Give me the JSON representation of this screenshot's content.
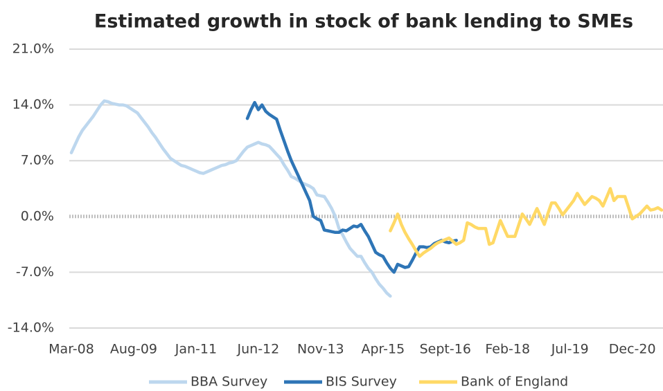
{
  "chart_data": {
    "type": "line",
    "title": "Estimated growth in stock of bank lending to SMEs",
    "categories": [
      "Mar-08",
      null,
      null,
      null,
      null,
      null,
      null,
      null,
      null,
      null,
      null,
      null,
      null,
      null,
      null,
      null,
      null,
      "Aug-09",
      null,
      null,
      null,
      null,
      null,
      null,
      null,
      null,
      null,
      null,
      null,
      null,
      null,
      null,
      null,
      null,
      "Jan-11",
      null,
      null,
      null,
      null,
      null,
      null,
      null,
      null,
      null,
      null,
      null,
      null,
      null,
      null,
      null,
      null,
      "Jun-12",
      null,
      null,
      null,
      null,
      null,
      null,
      null,
      null,
      null,
      null,
      null,
      null,
      null,
      null,
      null,
      null,
      "Nov-13",
      null,
      null,
      null,
      null,
      null,
      null,
      null,
      null,
      null,
      null,
      null,
      null,
      null,
      null,
      null,
      null,
      "Apr-15",
      null,
      null,
      null,
      null,
      null,
      null,
      null,
      null,
      null,
      null,
      null,
      null,
      null,
      null,
      null,
      null,
      "Sept-16",
      null,
      null,
      null,
      null,
      null,
      null,
      null,
      null,
      null,
      null,
      null,
      null,
      null,
      null,
      null,
      null,
      "Feb-18",
      null,
      null,
      null,
      null,
      null,
      null,
      null,
      null,
      null,
      null,
      null,
      null,
      null,
      null,
      null,
      null,
      "Jul-19",
      null,
      null,
      null,
      null,
      null,
      null,
      null,
      null,
      null,
      null,
      null,
      null,
      null,
      null,
      null,
      null,
      "Dec-20",
      null,
      null,
      null,
      null,
      null,
      null,
      null,
      null
    ],
    "series": [
      {
        "name": "BBA Survey",
        "color": "#bdd7ee",
        "values": [
          8.0,
          9.0,
          10.0,
          10.8,
          11.4,
          12.0,
          12.6,
          13.3,
          14.0,
          14.5,
          14.4,
          14.2,
          14.1,
          14.0,
          14.0,
          13.9,
          13.6,
          13.3,
          13.0,
          12.4,
          11.8,
          11.2,
          10.5,
          9.9,
          9.2,
          8.5,
          7.9,
          7.3,
          7.0,
          6.7,
          6.4,
          6.3,
          6.1,
          5.9,
          5.7,
          5.5,
          5.4,
          5.6,
          5.8,
          6.0,
          6.2,
          6.4,
          6.5,
          6.7,
          6.8,
          7.0,
          7.6,
          8.2,
          8.7,
          8.9,
          9.1,
          9.3,
          9.1,
          9.0,
          8.8,
          8.3,
          7.8,
          7.3,
          6.5,
          5.8,
          5.0,
          4.8,
          4.5,
          4.2,
          4.0,
          3.8,
          3.5,
          2.7,
          2.6,
          2.5,
          1.8,
          1.0,
          0.0,
          -1.5,
          -2.3,
          -3.2,
          -4.0,
          -4.5,
          -5.0,
          -5.0,
          -5.8,
          -6.5,
          -7.0,
          -7.8,
          -8.5,
          -9.0,
          -9.6,
          -10.0,
          null,
          null,
          null,
          null,
          null,
          null,
          null,
          null,
          null,
          null,
          null,
          null,
          null,
          null,
          null,
          null,
          null,
          null,
          null,
          null,
          null,
          null,
          null,
          null,
          null,
          null,
          null,
          null,
          null,
          null,
          null,
          null,
          null,
          null,
          null,
          null,
          null,
          null,
          null,
          null,
          null,
          null,
          null,
          null,
          null,
          null,
          null,
          null,
          null,
          null,
          null,
          null,
          null,
          null,
          null,
          null,
          null,
          null,
          null,
          null,
          null,
          null,
          null,
          null,
          null,
          null,
          null,
          null,
          null,
          null,
          null,
          null,
          null,
          null
        ]
      },
      {
        "name": "BIS Survey",
        "color": "#2e75b6",
        "values": [
          null,
          null,
          null,
          null,
          null,
          null,
          null,
          null,
          null,
          null,
          null,
          null,
          null,
          null,
          null,
          null,
          null,
          null,
          null,
          null,
          null,
          null,
          null,
          null,
          null,
          null,
          null,
          null,
          null,
          null,
          null,
          null,
          null,
          null,
          null,
          null,
          null,
          null,
          null,
          null,
          null,
          null,
          null,
          null,
          null,
          null,
          null,
          null,
          12.3,
          13.4,
          14.3,
          13.4,
          14.0,
          13.2,
          12.8,
          12.5,
          12.2,
          10.8,
          9.5,
          8.2,
          7.0,
          6.0,
          5.0,
          4.0,
          3.0,
          2.0,
          0.0,
          -0.3,
          -0.5,
          -1.7,
          -1.8,
          -1.9,
          -2.0,
          -2.0,
          -1.7,
          -1.8,
          -1.5,
          -1.2,
          -1.3,
          -1.0,
          -1.8,
          -2.5,
          -3.5,
          -4.5,
          -4.8,
          -5.0,
          -5.8,
          -6.5,
          -7.0,
          -6.0,
          -6.2,
          -6.4,
          -6.3,
          -5.5,
          -4.6,
          -3.8,
          -3.8,
          -3.9,
          -3.8,
          -3.4,
          -3.2,
          -3.0,
          -3.2,
          -3.3,
          -3.1,
          -3.0,
          null,
          null,
          null,
          null,
          null,
          null,
          null,
          null,
          null,
          null,
          null,
          null,
          null,
          null,
          null,
          null,
          null,
          null,
          null,
          null,
          null,
          null,
          null,
          null,
          null,
          null,
          null,
          null,
          null,
          null,
          null,
          null,
          null,
          null,
          null,
          null,
          null,
          null,
          null,
          null,
          null,
          null,
          null,
          null,
          null,
          null,
          null,
          null,
          null,
          null,
          null,
          null,
          null,
          null,
          null,
          null
        ]
      },
      {
        "name": "Bank of England",
        "color": "#ffd966",
        "values": [
          null,
          null,
          null,
          null,
          null,
          null,
          null,
          null,
          null,
          null,
          null,
          null,
          null,
          null,
          null,
          null,
          null,
          null,
          null,
          null,
          null,
          null,
          null,
          null,
          null,
          null,
          null,
          null,
          null,
          null,
          null,
          null,
          null,
          null,
          null,
          null,
          null,
          null,
          null,
          null,
          null,
          null,
          null,
          null,
          null,
          null,
          null,
          null,
          null,
          null,
          null,
          null,
          null,
          null,
          null,
          null,
          null,
          null,
          null,
          null,
          null,
          null,
          null,
          null,
          null,
          null,
          null,
          null,
          null,
          null,
          null,
          null,
          null,
          null,
          null,
          null,
          null,
          null,
          null,
          null,
          null,
          null,
          null,
          null,
          null,
          null,
          null,
          -1.8,
          -0.8,
          0.3,
          -1.0,
          -2.0,
          -2.8,
          -3.5,
          -4.3,
          -5.0,
          -4.6,
          -4.3,
          -4.0,
          -3.6,
          -3.3,
          -3.1,
          -2.9,
          -2.7,
          -3.1,
          -3.5,
          -3.3,
          -3.0,
          -0.8,
          -1.0,
          -1.3,
          -1.5,
          -1.5,
          -1.5,
          -3.5,
          -3.3,
          -1.9,
          -0.5,
          -1.5,
          -2.5,
          -2.5,
          -2.5,
          -1.1,
          0.3,
          -0.3,
          -1.0,
          0.0,
          1.0,
          0.0,
          -1.0,
          0.4,
          1.7,
          1.7,
          1.0,
          0.2,
          0.8,
          1.4,
          2.0,
          2.9,
          2.2,
          1.5,
          2.0,
          2.5,
          2.3,
          2.0,
          1.3,
          2.4,
          3.5,
          2.0,
          2.5,
          2.5,
          2.5,
          1.1,
          -0.3,
          0.0,
          0.3,
          0.8,
          1.3,
          0.8,
          0.9,
          1.1,
          0.8
        ]
      }
    ],
    "ylim": [
      -14,
      21
    ],
    "yticks": [
      {
        "value": -14,
        "label": "-14.0%"
      },
      {
        "value": -7,
        "label": "-7.0%"
      },
      {
        "value": 0,
        "label": "0.0%"
      },
      {
        "value": 7,
        "label": "7.0%"
      },
      {
        "value": 14,
        "label": "14.0%"
      },
      {
        "value": 21,
        "label": "21.0%"
      }
    ],
    "grid": true,
    "legend": "bottom"
  }
}
